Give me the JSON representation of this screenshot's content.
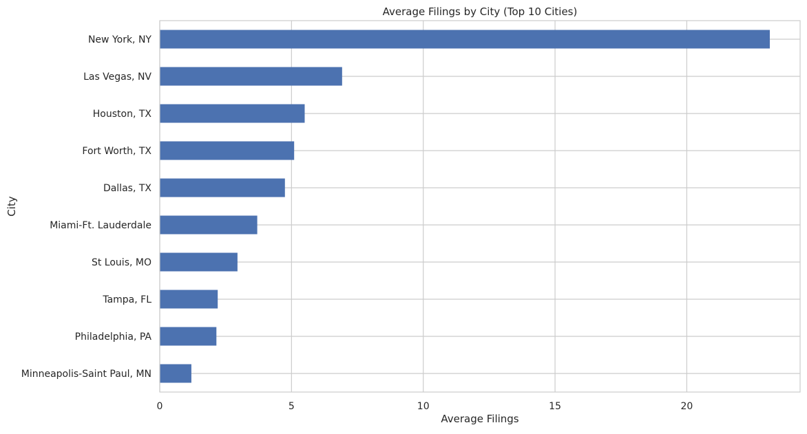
{
  "chart_data": {
    "type": "bar",
    "orientation": "horizontal",
    "title": "Average Filings by City (Top 10 Cities)",
    "xlabel": "Average Filings",
    "ylabel": "City",
    "categories": [
      "New York, NY",
      "Las Vegas, NV",
      "Houston, TX",
      "Fort Worth, TX",
      "Dallas, TX",
      "Miami-Ft. Lauderdale",
      "St Louis, MO",
      "Tampa, FL",
      "Philadelphia, PA",
      "Minneapolis-Saint Paul, MN"
    ],
    "values": [
      23.15,
      6.92,
      5.5,
      5.1,
      4.75,
      3.7,
      2.95,
      2.2,
      2.15,
      1.2
    ],
    "xlim": [
      0,
      24.3
    ],
    "xticks": [
      0,
      5,
      10,
      15,
      20
    ],
    "grid": true,
    "bar_color": "#4c72b0",
    "grid_color": "#cccccc"
  }
}
